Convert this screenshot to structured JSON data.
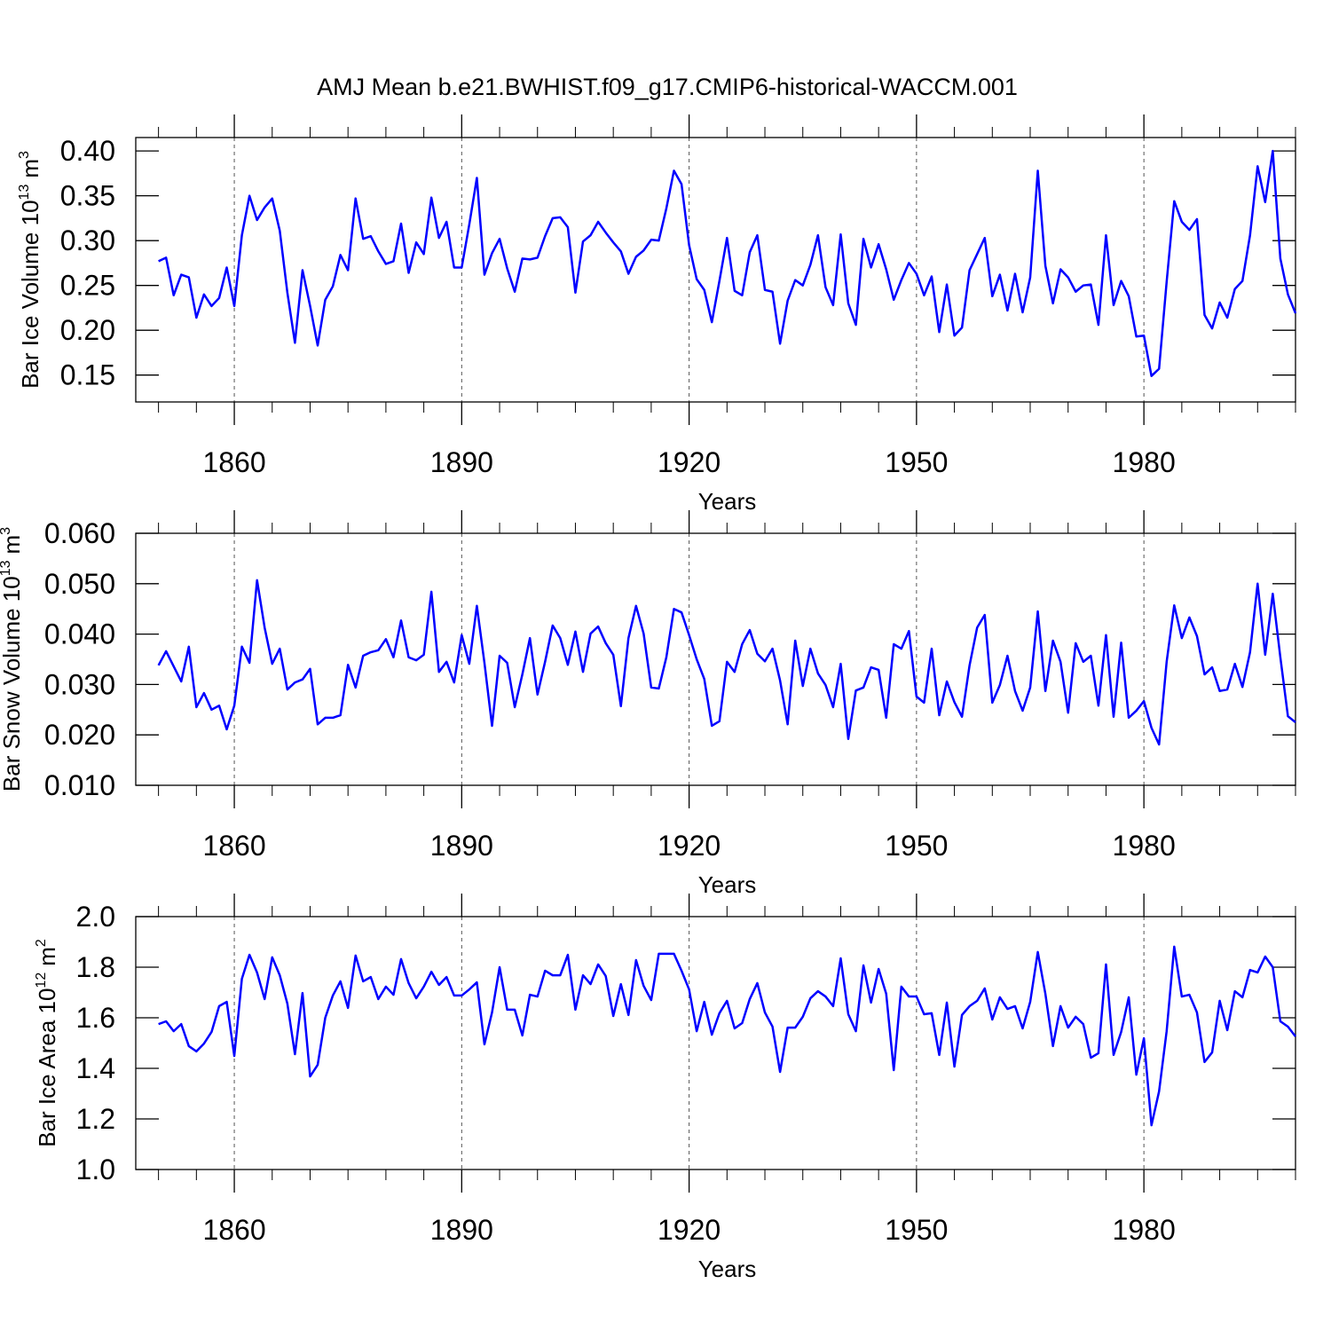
{
  "chart_data": [
    {
      "type": "line",
      "title": "AMJ Mean b.e21.BWHIST.f09_g17.CMIP6-historical-WACCM.001",
      "xlabel": "Years",
      "ylabel": [
        "Bar Ice Volume 10",
        "13",
        "m",
        "3"
      ],
      "x": [
        1850,
        1851,
        1852,
        1853,
        1854,
        1855,
        1856,
        1857,
        1858,
        1859,
        1860,
        1861,
        1862,
        1863,
        1864,
        1865,
        1866,
        1867,
        1868,
        1869,
        1870,
        1871,
        1872,
        1873,
        1874,
        1875,
        1876,
        1877,
        1878,
        1879,
        1880,
        1881,
        1882,
        1883,
        1884,
        1885,
        1886,
        1887,
        1888,
        1889,
        1890,
        1891,
        1892,
        1893,
        1894,
        1895,
        1896,
        1897,
        1898,
        1899,
        1900,
        1901,
        1902,
        1903,
        1904,
        1905,
        1906,
        1907,
        1908,
        1909,
        1910,
        1911,
        1912,
        1913,
        1914,
        1915,
        1916,
        1917,
        1918,
        1919,
        1920,
        1921,
        1922,
        1923,
        1924,
        1925,
        1926,
        1927,
        1928,
        1929,
        1930,
        1931,
        1932,
        1933,
        1934,
        1935,
        1936,
        1937,
        1938,
        1939,
        1940,
        1941,
        1942,
        1943,
        1944,
        1945,
        1946,
        1947,
        1948,
        1949,
        1950,
        1951,
        1952,
        1953,
        1954,
        1955,
        1956,
        1957,
        1958,
        1959,
        1960,
        1961,
        1962,
        1963,
        1964,
        1965,
        1966,
        1967,
        1968,
        1969,
        1970,
        1971,
        1972,
        1973,
        1974,
        1975,
        1976,
        1977,
        1978,
        1979,
        1980,
        1981,
        1982,
        1983,
        1984,
        1985,
        1986,
        1987,
        1988,
        1989,
        1990,
        1991,
        1992,
        1993,
        1994,
        1995,
        1996,
        1997,
        1998,
        1999,
        2000
      ],
      "values": [
        0.277,
        0.281,
        0.239,
        0.262,
        0.259,
        0.214,
        0.24,
        0.227,
        0.236,
        0.27,
        0.227,
        0.306,
        0.35,
        0.323,
        0.337,
        0.347,
        0.311,
        0.242,
        0.186,
        0.267,
        0.227,
        0.183,
        0.234,
        0.249,
        0.284,
        0.267,
        0.347,
        0.302,
        0.305,
        0.288,
        0.274,
        0.277,
        0.319,
        0.264,
        0.298,
        0.285,
        0.348,
        0.303,
        0.321,
        0.27,
        0.27,
        0.318,
        0.37,
        0.262,
        0.286,
        0.302,
        0.269,
        0.243,
        0.28,
        0.279,
        0.281,
        0.305,
        0.325,
        0.326,
        0.315,
        0.242,
        0.299,
        0.306,
        0.321,
        0.309,
        0.298,
        0.288,
        0.263,
        0.282,
        0.289,
        0.301,
        0.3,
        0.336,
        0.378,
        0.363,
        0.295,
        0.257,
        0.245,
        0.209,
        0.255,
        0.303,
        0.244,
        0.239,
        0.287,
        0.306,
        0.245,
        0.243,
        0.185,
        0.233,
        0.256,
        0.25,
        0.273,
        0.306,
        0.248,
        0.228,
        0.307,
        0.23,
        0.206,
        0.302,
        0.27,
        0.296,
        0.268,
        0.234,
        0.256,
        0.275,
        0.263,
        0.239,
        0.26,
        0.198,
        0.251,
        0.194,
        0.203,
        0.267,
        0.285,
        0.303,
        0.238,
        0.262,
        0.222,
        0.263,
        0.22,
        0.259,
        0.378,
        0.272,
        0.23,
        0.268,
        0.259,
        0.243,
        0.25,
        0.251,
        0.206,
        0.306,
        0.228,
        0.255,
        0.238,
        0.193,
        0.194,
        0.149,
        0.157,
        0.254,
        0.344,
        0.321,
        0.312,
        0.324,
        0.217,
        0.202,
        0.231,
        0.214,
        0.246,
        0.255,
        0.306,
        0.383,
        0.343,
        0.4,
        0.28,
        0.24,
        0.219
      ],
      "color": "#0000ff",
      "xlim": [
        1847,
        2000
      ],
      "xticks": [
        1860,
        1890,
        1920,
        1950,
        1980
      ],
      "xminorticks": [
        1850,
        1855,
        1865,
        1870,
        1875,
        1880,
        1885,
        1895,
        1900,
        1905,
        1910,
        1915,
        1925,
        1930,
        1935,
        1940,
        1945,
        1955,
        1960,
        1965,
        1970,
        1975,
        1985,
        1990,
        1995,
        2000
      ],
      "ylim": [
        0.12,
        0.415
      ],
      "yticks": [
        0.15,
        {
          "value": 0.2,
          "label": "0.20"
        },
        0.25,
        {
          "value": 0.3,
          "label": "0.30"
        },
        0.35,
        {
          "value": 0.4,
          "label": "0.40"
        }
      ],
      "grid": true
    },
    {
      "type": "line",
      "xlabel": "Years",
      "ylabel": [
        "Bar Snow Volume 10",
        "13",
        "m",
        "3"
      ],
      "x": [
        1850,
        1851,
        1852,
        1853,
        1854,
        1855,
        1856,
        1857,
        1858,
        1859,
        1860,
        1861,
        1862,
        1863,
        1864,
        1865,
        1866,
        1867,
        1868,
        1869,
        1870,
        1871,
        1872,
        1873,
        1874,
        1875,
        1876,
        1877,
        1878,
        1879,
        1880,
        1881,
        1882,
        1883,
        1884,
        1885,
        1886,
        1887,
        1888,
        1889,
        1890,
        1891,
        1892,
        1893,
        1894,
        1895,
        1896,
        1897,
        1898,
        1899,
        1900,
        1901,
        1902,
        1903,
        1904,
        1905,
        1906,
        1907,
        1908,
        1909,
        1910,
        1911,
        1912,
        1913,
        1914,
        1915,
        1916,
        1917,
        1918,
        1919,
        1920,
        1921,
        1922,
        1923,
        1924,
        1925,
        1926,
        1927,
        1928,
        1929,
        1930,
        1931,
        1932,
        1933,
        1934,
        1935,
        1936,
        1937,
        1938,
        1939,
        1940,
        1941,
        1942,
        1943,
        1944,
        1945,
        1946,
        1947,
        1948,
        1949,
        1950,
        1951,
        1952,
        1953,
        1954,
        1955,
        1956,
        1957,
        1958,
        1959,
        1960,
        1961,
        1962,
        1963,
        1964,
        1965,
        1966,
        1967,
        1968,
        1969,
        1970,
        1971,
        1972,
        1973,
        1974,
        1975,
        1976,
        1977,
        1978,
        1979,
        1980,
        1981,
        1982,
        1983,
        1984,
        1985,
        1986,
        1987,
        1988,
        1989,
        1990,
        1991,
        1992,
        1993,
        1994,
        1995,
        1996,
        1997,
        1998,
        1999,
        2000
      ],
      "values": [
        0.0338,
        0.0366,
        0.0336,
        0.0306,
        0.0375,
        0.0255,
        0.0283,
        0.025,
        0.0258,
        0.0211,
        0.0258,
        0.0375,
        0.0343,
        0.0507,
        0.0413,
        0.0341,
        0.0371,
        0.029,
        0.0304,
        0.031,
        0.0331,
        0.0221,
        0.0234,
        0.0234,
        0.0239,
        0.0339,
        0.0294,
        0.0357,
        0.0364,
        0.0368,
        0.039,
        0.0354,
        0.0427,
        0.0354,
        0.0348,
        0.0359,
        0.0484,
        0.0325,
        0.0345,
        0.0304,
        0.0398,
        0.0341,
        0.0456,
        0.0343,
        0.0218,
        0.0357,
        0.0343,
        0.0255,
        0.032,
        0.0392,
        0.028,
        0.0345,
        0.0417,
        0.0392,
        0.0339,
        0.0405,
        0.0325,
        0.0401,
        0.0415,
        0.0382,
        0.0359,
        0.0257,
        0.0392,
        0.0456,
        0.0401,
        0.0294,
        0.0292,
        0.0354,
        0.045,
        0.0443,
        0.0398,
        0.035,
        0.0311,
        0.0218,
        0.0227,
        0.0345,
        0.0325,
        0.038,
        0.0408,
        0.0361,
        0.0346,
        0.0371,
        0.0308,
        0.0221,
        0.0387,
        0.0297,
        0.0371,
        0.0322,
        0.0299,
        0.0255,
        0.0341,
        0.0192,
        0.0288,
        0.0294,
        0.0334,
        0.0329,
        0.0234,
        0.038,
        0.0371,
        0.0406,
        0.0276,
        0.0264,
        0.0371,
        0.0239,
        0.0306,
        0.0265,
        0.0236,
        0.0338,
        0.0413,
        0.0438,
        0.0264,
        0.0299,
        0.0357,
        0.0287,
        0.0248,
        0.0294,
        0.0445,
        0.0287,
        0.0387,
        0.0345,
        0.0244,
        0.0382,
        0.0345,
        0.0357,
        0.0258,
        0.0398,
        0.0236,
        0.0383,
        0.0234,
        0.0248,
        0.0267,
        0.0214,
        0.0181,
        0.0345,
        0.0457,
        0.0392,
        0.0433,
        0.0396,
        0.032,
        0.0334,
        0.0287,
        0.029,
        0.0341,
        0.0295,
        0.0364,
        0.05,
        0.0359,
        0.048,
        0.0354,
        0.0237,
        0.0225
      ],
      "color": "#0000ff",
      "xlim": [
        1847,
        2000
      ],
      "xticks": [
        1860,
        1890,
        1920,
        1950,
        1980
      ],
      "xminorticks": [
        1850,
        1855,
        1865,
        1870,
        1875,
        1880,
        1885,
        1895,
        1900,
        1905,
        1910,
        1915,
        1925,
        1930,
        1935,
        1940,
        1945,
        1955,
        1960,
        1965,
        1970,
        1975,
        1985,
        1990,
        1995,
        2000
      ],
      "ylim": [
        0.01,
        0.06
      ],
      "yticks": [
        {
          "value": 0.01,
          "label": "0.010"
        },
        {
          "value": 0.02,
          "label": "0.020"
        },
        {
          "value": 0.03,
          "label": "0.030"
        },
        {
          "value": 0.04,
          "label": "0.040"
        },
        {
          "value": 0.05,
          "label": "0.050"
        },
        {
          "value": 0.06,
          "label": "0.060"
        }
      ],
      "grid": true
    },
    {
      "type": "line",
      "xlabel": "Years",
      "ylabel": [
        "Bar Ice Area 10",
        "12",
        "m",
        "2"
      ],
      "x": [
        1850,
        1851,
        1852,
        1853,
        1854,
        1855,
        1856,
        1857,
        1858,
        1859,
        1860,
        1861,
        1862,
        1863,
        1864,
        1865,
        1866,
        1867,
        1868,
        1869,
        1870,
        1871,
        1872,
        1873,
        1874,
        1875,
        1876,
        1877,
        1878,
        1879,
        1880,
        1881,
        1882,
        1883,
        1884,
        1885,
        1886,
        1887,
        1888,
        1889,
        1890,
        1891,
        1892,
        1893,
        1894,
        1895,
        1896,
        1897,
        1898,
        1899,
        1900,
        1901,
        1902,
        1903,
        1904,
        1905,
        1906,
        1907,
        1908,
        1909,
        1910,
        1911,
        1912,
        1913,
        1914,
        1915,
        1916,
        1917,
        1918,
        1919,
        1920,
        1921,
        1922,
        1923,
        1924,
        1925,
        1926,
        1927,
        1928,
        1929,
        1930,
        1931,
        1932,
        1933,
        1934,
        1935,
        1936,
        1937,
        1938,
        1939,
        1940,
        1941,
        1942,
        1943,
        1944,
        1945,
        1946,
        1947,
        1948,
        1949,
        1950,
        1951,
        1952,
        1953,
        1954,
        1955,
        1956,
        1957,
        1958,
        1959,
        1960,
        1961,
        1962,
        1963,
        1964,
        1965,
        1966,
        1967,
        1968,
        1969,
        1970,
        1971,
        1972,
        1973,
        1974,
        1975,
        1976,
        1977,
        1978,
        1979,
        1980,
        1981,
        1982,
        1983,
        1984,
        1985,
        1986,
        1987,
        1988,
        1989,
        1990,
        1991,
        1992,
        1993,
        1994,
        1995,
        1996,
        1997,
        1998,
        1999,
        2000
      ],
      "values": [
        1.575,
        1.586,
        1.547,
        1.575,
        1.488,
        1.467,
        1.498,
        1.544,
        1.646,
        1.663,
        1.449,
        1.754,
        1.849,
        1.779,
        1.674,
        1.839,
        1.768,
        1.656,
        1.456,
        1.698,
        1.368,
        1.414,
        1.6,
        1.688,
        1.744,
        1.639,
        1.846,
        1.744,
        1.761,
        1.674,
        1.723,
        1.691,
        1.832,
        1.737,
        1.677,
        1.723,
        1.782,
        1.73,
        1.761,
        1.688,
        1.688,
        1.712,
        1.74,
        1.495,
        1.621,
        1.8,
        1.632,
        1.632,
        1.53,
        1.691,
        1.684,
        1.786,
        1.768,
        1.768,
        1.849,
        1.632,
        1.768,
        1.733,
        1.811,
        1.765,
        1.607,
        1.733,
        1.611,
        1.828,
        1.726,
        1.67,
        1.853,
        1.853,
        1.853,
        1.786,
        1.712,
        1.547,
        1.663,
        1.533,
        1.618,
        1.667,
        1.558,
        1.579,
        1.674,
        1.737,
        1.621,
        1.565,
        1.386,
        1.561,
        1.561,
        1.604,
        1.677,
        1.705,
        1.684,
        1.646,
        1.835,
        1.614,
        1.547,
        1.807,
        1.66,
        1.793,
        1.695,
        1.393,
        1.723,
        1.684,
        1.684,
        1.614,
        1.618,
        1.453,
        1.66,
        1.407,
        1.611,
        1.646,
        1.667,
        1.716,
        1.593,
        1.681,
        1.635,
        1.646,
        1.558,
        1.663,
        1.86,
        1.695,
        1.488,
        1.646,
        1.561,
        1.604,
        1.575,
        1.442,
        1.46,
        1.811,
        1.453,
        1.544,
        1.681,
        1.375,
        1.519,
        1.175,
        1.309,
        1.547,
        1.881,
        1.684,
        1.691,
        1.621,
        1.425,
        1.463,
        1.667,
        1.551,
        1.705,
        1.681,
        1.789,
        1.779,
        1.842,
        1.8,
        1.586,
        1.565,
        1.526
      ],
      "color": "#0000ff",
      "xlim": [
        1847,
        2000
      ],
      "xticks": [
        1860,
        1890,
        1920,
        1950,
        1980
      ],
      "xminorticks": [
        1850,
        1855,
        1865,
        1870,
        1875,
        1880,
        1885,
        1895,
        1900,
        1905,
        1910,
        1915,
        1925,
        1930,
        1935,
        1940,
        1945,
        1955,
        1960,
        1965,
        1970,
        1975,
        1985,
        1990,
        1995,
        2000
      ],
      "ylim": [
        1.0,
        2.0
      ],
      "yticks": [
        {
          "value": 1.0,
          "label": "1.0"
        },
        1.2,
        1.4,
        1.6,
        1.8,
        {
          "value": 2.0,
          "label": "2.0"
        }
      ],
      "grid": true
    }
  ]
}
